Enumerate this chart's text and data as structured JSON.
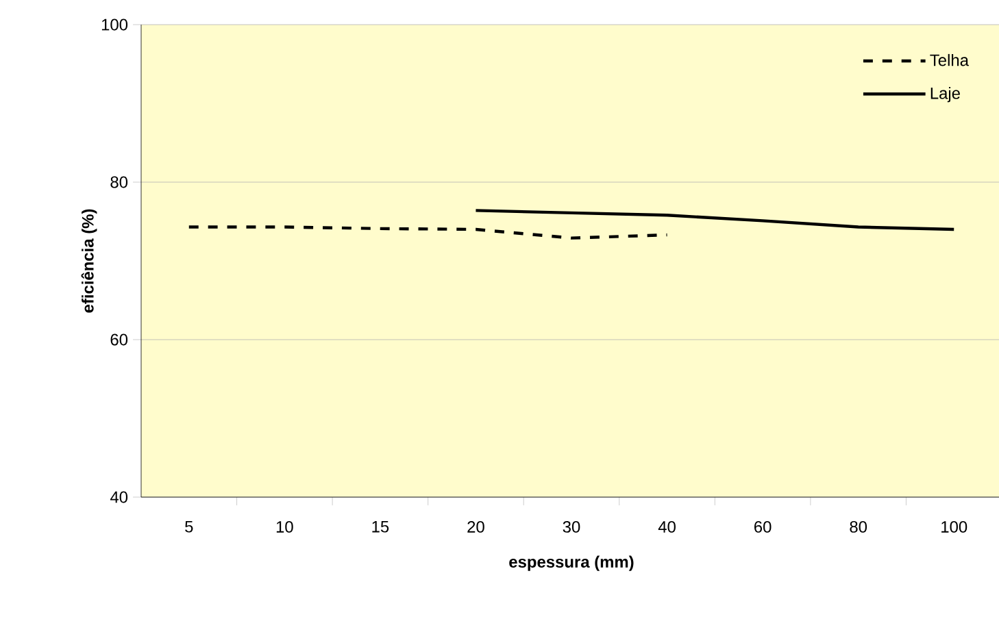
{
  "chart_data": {
    "type": "line",
    "xlabel": "espessura (mm)",
    "ylabel": "eficiência (%)",
    "categories": [
      "5",
      "10",
      "15",
      "20",
      "30",
      "40",
      "60",
      "80",
      "100"
    ],
    "series": [
      {
        "name": "Telha",
        "color": "#000000",
        "line_style": "dashed",
        "values": [
          74.3,
          74.3,
          74.1,
          74.0,
          72.9,
          73.3,
          null,
          null,
          null
        ]
      },
      {
        "name": "Laje",
        "color": "#000000",
        "line_style": "solid",
        "values": [
          null,
          null,
          null,
          76.4,
          76.1,
          75.8,
          75.1,
          74.3,
          74.0
        ]
      }
    ],
    "ylim": [
      40,
      100
    ],
    "yticks": [
      40,
      60,
      80,
      100
    ],
    "grid": "y",
    "legend": "top right",
    "marker": "none"
  }
}
